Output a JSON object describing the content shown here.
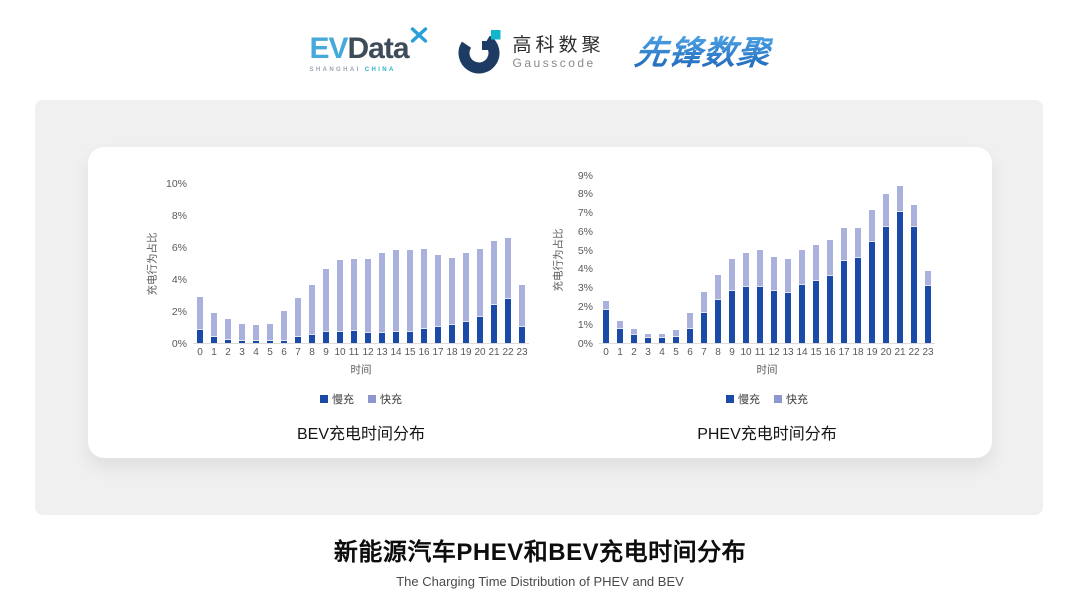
{
  "header": {
    "evdata": {
      "ev": "EV",
      "data": "Data",
      "sub_left": "SHANGHAI",
      "sub_right": "CHINA"
    },
    "gausscode": {
      "cn": "高科数聚",
      "en": "Gausscode"
    },
    "xianfeng": {
      "text": "先锋数聚"
    }
  },
  "colors": {
    "slow": "#1b49a8",
    "fast": "#a9b1dc",
    "legend_fast": "#8d97cd",
    "axis_text": "#595959",
    "panel_bg": "#f0f0f1"
  },
  "chart_data": [
    {
      "type": "bar",
      "stacked": true,
      "title": "BEV充电时间分布",
      "xlabel": "时间",
      "ylabel": "充电行为占比",
      "ylim": [
        0,
        10
      ],
      "y_tick_step": 2,
      "y_tick_suffix": "%",
      "grid": false,
      "legend_position": "bottom",
      "categories": [
        "0",
        "1",
        "2",
        "3",
        "4",
        "5",
        "6",
        "7",
        "8",
        "9",
        "10",
        "11",
        "12",
        "13",
        "14",
        "15",
        "16",
        "17",
        "18",
        "19",
        "20",
        "21",
        "22",
        "23"
      ],
      "series": [
        {
          "name": "慢充",
          "color": "#1b49a8",
          "values": [
            0.8,
            0.35,
            0.2,
            0.15,
            0.1,
            0.1,
            0.15,
            0.35,
            0.5,
            0.7,
            0.7,
            0.75,
            0.6,
            0.65,
            0.7,
            0.7,
            0.85,
            1.0,
            1.1,
            1.3,
            1.6,
            2.4,
            2.75,
            1.0
          ]
        },
        {
          "name": "快充",
          "color": "#a9b1dc",
          "values": [
            2.1,
            1.55,
            1.3,
            1.05,
            1.0,
            1.1,
            1.85,
            2.45,
            3.1,
            3.9,
            4.5,
            4.5,
            4.65,
            5.0,
            5.1,
            5.1,
            5.0,
            4.5,
            4.2,
            4.3,
            4.3,
            3.95,
            3.8,
            2.6
          ]
        }
      ]
    },
    {
      "type": "bar",
      "stacked": true,
      "title": "PHEV充电时间分布",
      "xlabel": "时间",
      "ylabel": "充电行为占比",
      "ylim": [
        0,
        9
      ],
      "y_tick_step": 1,
      "y_tick_suffix": "%",
      "grid": false,
      "legend_position": "bottom",
      "categories": [
        "0",
        "1",
        "2",
        "3",
        "4",
        "5",
        "6",
        "7",
        "8",
        "9",
        "10",
        "11",
        "12",
        "13",
        "14",
        "15",
        "16",
        "17",
        "18",
        "19",
        "20",
        "21",
        "22",
        "23"
      ],
      "series": [
        {
          "name": "慢充",
          "color": "#1b49a8",
          "values": [
            1.75,
            0.75,
            0.45,
            0.25,
            0.25,
            0.3,
            0.75,
            1.6,
            2.3,
            2.8,
            3.0,
            3.0,
            2.8,
            2.65,
            3.1,
            3.3,
            3.6,
            4.4,
            4.55,
            5.4,
            6.2,
            7.0,
            6.2,
            3.05
          ]
        },
        {
          "name": "快充",
          "color": "#a9b1dc",
          "values": [
            0.5,
            0.45,
            0.3,
            0.25,
            0.25,
            0.4,
            0.85,
            1.15,
            1.35,
            1.7,
            1.8,
            2.0,
            1.8,
            1.85,
            1.9,
            1.95,
            1.9,
            1.75,
            1.6,
            1.7,
            1.75,
            1.4,
            1.2,
            0.8
          ]
        }
      ]
    }
  ],
  "footer": {
    "title": "新能源汽车PHEV和BEV充电时间分布",
    "subtitle": "The Charging Time Distribution of PHEV and BEV"
  }
}
